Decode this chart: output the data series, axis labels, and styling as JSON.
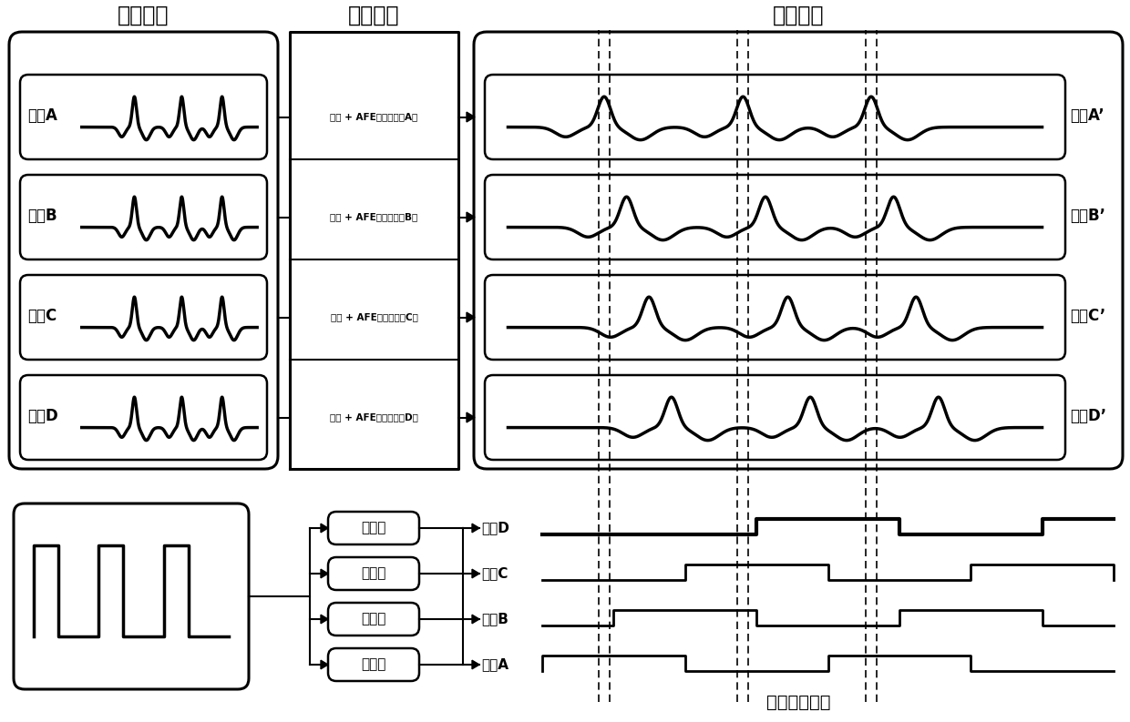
{
  "title_left": "始端信号",
  "title_middle": "延时逻辑",
  "title_right": "终端信号",
  "title_bottom": "终端采样时钟",
  "channels_left": [
    "通道A",
    "通道B",
    "通道C",
    "通道D"
  ],
  "channels_right": [
    "通道A’",
    "通道B’",
    "通道C’",
    "通道D’"
  ],
  "delay_labels": [
    "线缆 + AFE信号处理（A）",
    "线缆 + AFE信号处理（B）",
    "线缆 + AFE信号处理（C）",
    "线缆 + AFE信号处理（D）"
  ],
  "delay_line_labels": [
    "延迟线",
    "延迟线",
    "延迟线",
    "延迟线"
  ],
  "clock_labels": [
    "时钟A",
    "时钟B",
    "时钟C",
    "时钟D"
  ],
  "bg_color": "#ffffff",
  "line_color": "#000000"
}
